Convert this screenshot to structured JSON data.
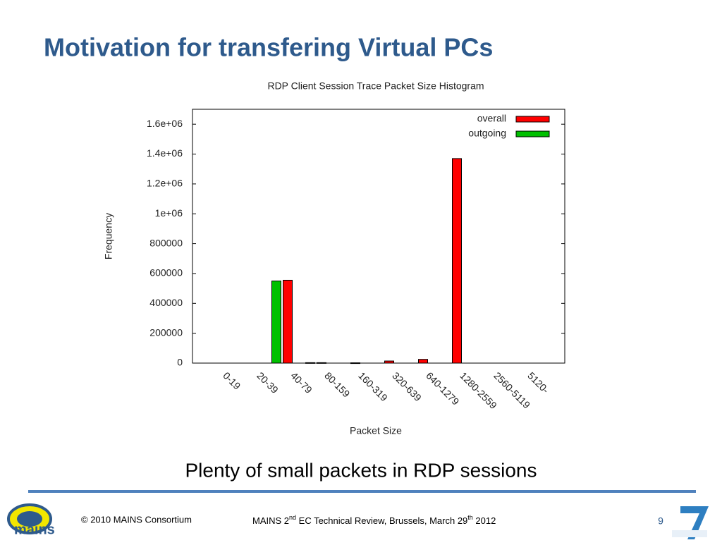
{
  "slide": {
    "title": "Motivation for transfering Virtual PCs",
    "caption": "Plenty of small packets in RDP sessions",
    "footer_left": "© 2010 MAINS Consortium",
    "footer_center": [
      "MAINS 2",
      "nd",
      " EC Technical Review, Brussels, March 29",
      "th",
      " 2012"
    ],
    "page_number": "9",
    "logo_text": "mains"
  },
  "chart_data": {
    "type": "bar",
    "title": "RDP Client Session Trace Packet Size Histogram",
    "x_label": "Packet Size",
    "y_label": "Frequency",
    "categories": [
      "0-19",
      "20-39",
      "40-79",
      "80-159",
      "160-319",
      "320-639",
      "640-1279",
      "1280-2559",
      "2560-5119",
      "5120-"
    ],
    "series": [
      {
        "name": "overall",
        "color": "#ff0000",
        "values": [
          0,
          555000,
          3000,
          2000,
          14000,
          25000,
          1370000,
          0,
          0,
          0
        ]
      },
      {
        "name": "outgoing",
        "color": "#00c000",
        "values": [
          0,
          550000,
          3000,
          0,
          0,
          0,
          0,
          0,
          0,
          0
        ]
      }
    ],
    "ylim": [
      0,
      1700000
    ],
    "yticks": [
      0,
      200000,
      400000,
      600000,
      800000,
      {
        "value": 1000000,
        "label": "1e+06"
      },
      {
        "value": 1200000,
        "label": "1.2e+06"
      },
      {
        "value": 1400000,
        "label": "1.4e+06"
      },
      {
        "value": 1600000,
        "label": "1.6e+06"
      }
    ],
    "legend": "top-right"
  }
}
